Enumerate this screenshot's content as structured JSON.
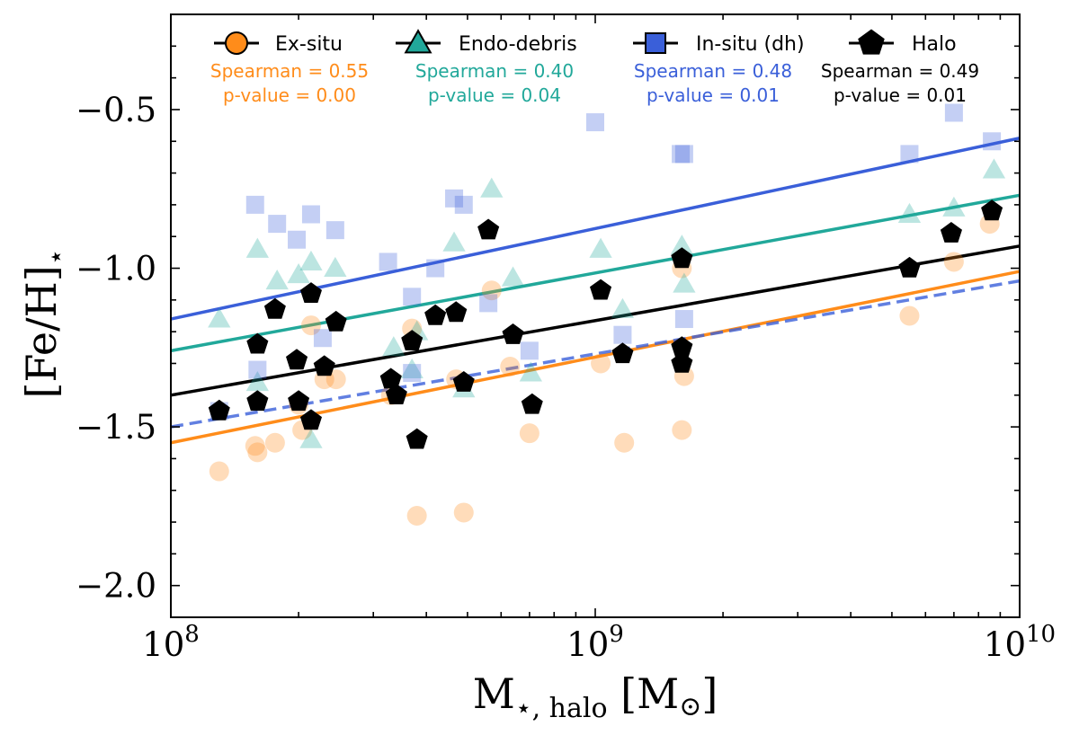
{
  "chart_data": {
    "type": "scatter",
    "title": "",
    "xlabel": "M",
    "xlabel_sub": "⋆, halo",
    "xlabel_unit_open": " [M",
    "xlabel_unit_sym": "⊙",
    "xlabel_unit_close": "]",
    "ylabel": "[Fe/H]",
    "ylabel_sub": "⋆",
    "xscale": "log",
    "xlim": [
      100000000,
      10000000000
    ],
    "ylim": [
      -2.1,
      -0.2
    ],
    "x_ticks": [
      {
        "value": 100000000,
        "base": "10",
        "exp": "8"
      },
      {
        "value": 1000000000,
        "base": "10",
        "exp": "9"
      },
      {
        "value": 10000000000,
        "base": "10",
        "exp": "10"
      }
    ],
    "y_ticks": [
      {
        "value": -0.5,
        "label": "−0.5"
      },
      {
        "value": -1.0,
        "label": "−1.0"
      },
      {
        "value": -1.5,
        "label": "−1.5"
      },
      {
        "value": -2.0,
        "label": "−2.0"
      }
    ],
    "series": [
      {
        "name": "Ex-situ",
        "color": "#ff8c1a",
        "marker": "circle",
        "spearman_label": "Spearman = 0.55",
        "pvalue_label": "p-value = 0.00",
        "fit": {
          "y_at_1e8": -1.55,
          "y_at_1e10": -1.01,
          "style": "solid"
        },
        "points": [
          [
            130000000,
            -1.64
          ],
          [
            158000000,
            -1.56
          ],
          [
            160000000,
            -1.58
          ],
          [
            176000000,
            -1.55
          ],
          [
            200000000,
            -1.43
          ],
          [
            204000000,
            -1.51
          ],
          [
            214000000,
            -1.18
          ],
          [
            230000000,
            -1.35
          ],
          [
            245000000,
            -1.35
          ],
          [
            330000000,
            -1.4
          ],
          [
            370000000,
            -1.19
          ],
          [
            380000000,
            -1.78
          ],
          [
            470000000,
            -1.35
          ],
          [
            490000000,
            -1.77
          ],
          [
            570000000,
            -1.07
          ],
          [
            630000000,
            -1.31
          ],
          [
            700000000,
            -1.52
          ],
          [
            1030000000,
            -1.3
          ],
          [
            1170000000,
            -1.55
          ],
          [
            1600000000,
            -1.0
          ],
          [
            1620000000,
            -1.34
          ],
          [
            1600000000,
            -1.51
          ],
          [
            5500000000,
            -1.15
          ],
          [
            7000000000,
            -0.98
          ],
          [
            8500000000,
            -0.86
          ]
        ]
      },
      {
        "name": "Endo-debris",
        "color": "#21a89a",
        "marker": "triangle",
        "spearman_label": "Spearman = 0.40",
        "pvalue_label": "p-value = 0.04",
        "fit": {
          "y_at_1e8": -1.26,
          "y_at_1e10": -0.77,
          "style": "solid"
        },
        "points": [
          [
            130000000,
            -1.16
          ],
          [
            160000000,
            -0.94
          ],
          [
            160000000,
            -1.36
          ],
          [
            178000000,
            -1.04
          ],
          [
            200000000,
            -1.02
          ],
          [
            214000000,
            -0.98
          ],
          [
            214000000,
            -1.54
          ],
          [
            244000000,
            -1.0
          ],
          [
            335000000,
            -1.25
          ],
          [
            370000000,
            -1.32
          ],
          [
            380000000,
            -1.2
          ],
          [
            465000000,
            -0.92
          ],
          [
            490000000,
            -1.38
          ],
          [
            570000000,
            -0.75
          ],
          [
            640000000,
            -1.03
          ],
          [
            705000000,
            -1.33
          ],
          [
            1030000000,
            -0.94
          ],
          [
            1160000000,
            -1.13
          ],
          [
            1600000000,
            -0.93
          ],
          [
            1620000000,
            -1.05
          ],
          [
            5500000000,
            -0.83
          ],
          [
            7000000000,
            -0.81
          ],
          [
            8700000000,
            -0.69
          ]
        ]
      },
      {
        "name": "In-situ (dh)",
        "color": "#3a5fd9",
        "marker": "square",
        "spearman_label": "Spearman = 0.48",
        "pvalue_label": "p-value = 0.01",
        "fit": {
          "y_at_1e8": -1.16,
          "y_at_1e10": -0.59,
          "style": "solid"
        },
        "fit2": {
          "y_at_1e8": -1.5,
          "y_at_1e10": -1.04,
          "style": "dashed"
        },
        "points": [
          [
            130000000,
            -1.45
          ],
          [
            158000000,
            -0.8
          ],
          [
            160000000,
            -1.32
          ],
          [
            178000000,
            -0.86
          ],
          [
            198000000,
            -0.91
          ],
          [
            214000000,
            -0.83
          ],
          [
            228000000,
            -1.22
          ],
          [
            244000000,
            -0.88
          ],
          [
            325000000,
            -0.98
          ],
          [
            370000000,
            -1.09
          ],
          [
            370000000,
            -1.33
          ],
          [
            420000000,
            -1.0
          ],
          [
            465000000,
            -0.78
          ],
          [
            490000000,
            -0.8
          ],
          [
            560000000,
            -1.11
          ],
          [
            700000000,
            -1.26
          ],
          [
            1000000000,
            -0.54
          ],
          [
            1160000000,
            -1.21
          ],
          [
            1590000000,
            -0.64
          ],
          [
            1620000000,
            -0.64
          ],
          [
            1620000000,
            -1.16
          ],
          [
            5500000000,
            -0.64
          ],
          [
            7000000000,
            -0.51
          ],
          [
            8600000000,
            -0.6
          ]
        ]
      },
      {
        "name": "Halo",
        "color": "#000000",
        "marker": "pentagon",
        "spearman_label": "Spearman = 0.49",
        "pvalue_label": "p-value = 0.01",
        "fit": {
          "y_at_1e8": -1.4,
          "y_at_1e10": -0.93,
          "style": "solid"
        },
        "points": [
          [
            130000000,
            -1.45
          ],
          [
            160000000,
            -1.42
          ],
          [
            160000000,
            -1.24
          ],
          [
            176000000,
            -1.13
          ],
          [
            198000000,
            -1.29
          ],
          [
            200000000,
            -1.42
          ],
          [
            214000000,
            -1.48
          ],
          [
            214000000,
            -1.08
          ],
          [
            230000000,
            -1.31
          ],
          [
            245000000,
            -1.17
          ],
          [
            330000000,
            -1.35
          ],
          [
            340000000,
            -1.4
          ],
          [
            370000000,
            -1.23
          ],
          [
            380000000,
            -1.54
          ],
          [
            420000000,
            -1.15
          ],
          [
            470000000,
            -1.14
          ],
          [
            490000000,
            -1.36
          ],
          [
            560000000,
            -0.88
          ],
          [
            640000000,
            -1.21
          ],
          [
            710000000,
            -1.43
          ],
          [
            1030000000,
            -1.07
          ],
          [
            1160000000,
            -1.27
          ],
          [
            1600000000,
            -0.97
          ],
          [
            1600000000,
            -1.25
          ],
          [
            1600000000,
            -1.3
          ],
          [
            5500000000,
            -1.0
          ],
          [
            6900000000,
            -0.89
          ],
          [
            8600000000,
            -0.82
          ]
        ]
      }
    ]
  }
}
